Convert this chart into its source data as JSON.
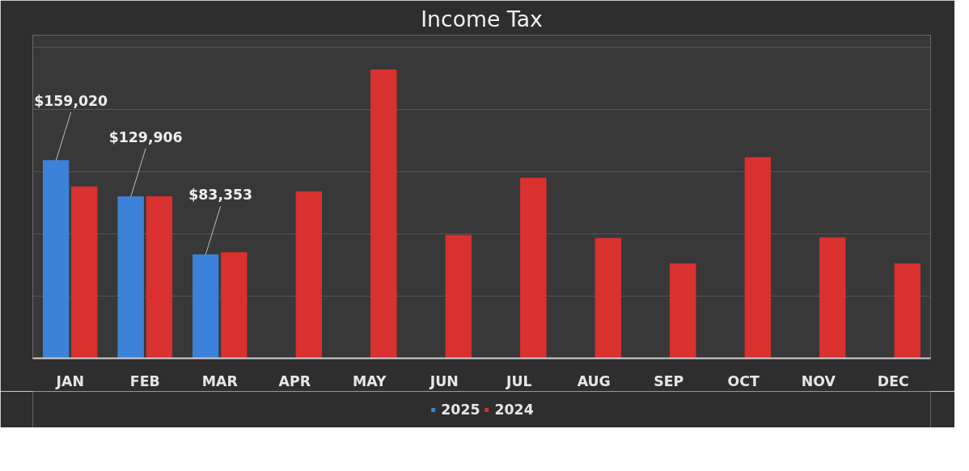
{
  "chart_data": {
    "type": "bar",
    "title": "Income Tax",
    "categories": [
      "JAN",
      "FEB",
      "MAR",
      "APR",
      "MAY",
      "JUN",
      "JUL",
      "AUG",
      "SEP",
      "OCT",
      "NOV",
      "DEC"
    ],
    "series": [
      {
        "name": "2025",
        "color": "#3c82d8",
        "values": [
          159020,
          129906,
          83353,
          null,
          null,
          null,
          null,
          null,
          null,
          null,
          null,
          null
        ],
        "value_labels": [
          "$159,020",
          "$129,906",
          "$83,353",
          null,
          null,
          null,
          null,
          null,
          null,
          null,
          null,
          null
        ]
      },
      {
        "name": "2024",
        "color": "#d8312f",
        "values": [
          138000,
          130000,
          85000,
          134000,
          232000,
          99000,
          145000,
          96500,
          76000,
          161500,
          97000,
          76000
        ]
      }
    ],
    "ylim": [
      0,
      260000
    ],
    "yticks": [
      {
        "value": 0,
        "label": null
      },
      {
        "value": 50000,
        "label": null
      },
      {
        "value": 100000,
        "label": null
      },
      {
        "value": 150000,
        "label": null
      },
      {
        "value": 200000,
        "label": null
      },
      {
        "value": 250000,
        "label": null
      }
    ],
    "tick_labels": "x",
    "grid": "y",
    "legend": "bottom"
  }
}
